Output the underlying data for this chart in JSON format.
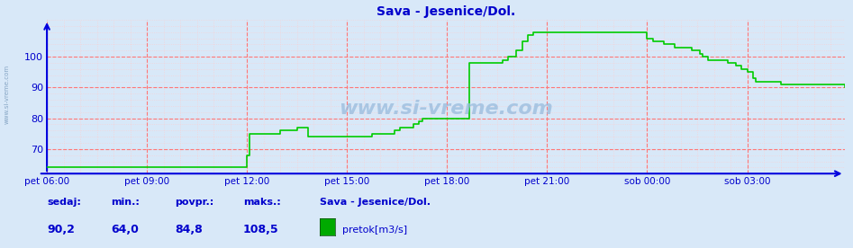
{
  "title": "Sava - Jesenice/Dol.",
  "bg_color": "#d8e8f8",
  "line_color": "#00cc00",
  "axis_color": "#0000dd",
  "grid_color_major": "#ff7777",
  "grid_color_minor": "#ffcccc",
  "text_color": "#0000cc",
  "watermark": "www.si-vreme.com",
  "legend_label": "pretok[m3/s]",
  "legend_color": "#00aa00",
  "station_label": "Sava - Jesenice/Dol.",
  "sedaj": "90,2",
  "min_val": "64,0",
  "povpr": "84,8",
  "maks": "108,5",
  "ylim": [
    62,
    112
  ],
  "yticks": [
    70,
    80,
    90,
    100
  ],
  "x_tick_labels": [
    "pet 06:00",
    "pet 09:00",
    "pet 12:00",
    "pet 15:00",
    "pet 18:00",
    "pet 21:00",
    "sob 00:00",
    "sob 03:00"
  ],
  "x_tick_positions": [
    0,
    36,
    72,
    108,
    144,
    180,
    216,
    252
  ],
  "num_points": 288,
  "flow_data": [
    64,
    64,
    64,
    64,
    64,
    64,
    64,
    64,
    64,
    64,
    64,
    64,
    64,
    64,
    64,
    64,
    64,
    64,
    64,
    64,
    64,
    64,
    64,
    64,
    64,
    64,
    64,
    64,
    64,
    64,
    64,
    64,
    64,
    64,
    64,
    64,
    64,
    64,
    64,
    64,
    64,
    64,
    64,
    64,
    64,
    64,
    64,
    64,
    64,
    64,
    64,
    64,
    64,
    64,
    64,
    64,
    64,
    64,
    64,
    64,
    64,
    64,
    64,
    64,
    64,
    64,
    64,
    64,
    64,
    64,
    64,
    64,
    68,
    75,
    75,
    75,
    75,
    75,
    75,
    75,
    75,
    75,
    75,
    75,
    76,
    76,
    76,
    76,
    76,
    76,
    77,
    77,
    77,
    77,
    74,
    74,
    74,
    74,
    74,
    74,
    74,
    74,
    74,
    74,
    74,
    74,
    74,
    74,
    74,
    74,
    74,
    74,
    74,
    74,
    74,
    74,
    74,
    75,
    75,
    75,
    75,
    75,
    75,
    75,
    75,
    76,
    76,
    77,
    77,
    77,
    77,
    77,
    78,
    78,
    79,
    80,
    80,
    80,
    80,
    80,
    80,
    80,
    80,
    80,
    80,
    80,
    80,
    80,
    80,
    80,
    80,
    80,
    98,
    98,
    98,
    98,
    98,
    98,
    98,
    98,
    98,
    98,
    98,
    98,
    99,
    99,
    100,
    100,
    100,
    102,
    102,
    105,
    105,
    107,
    107,
    108,
    108,
    108,
    108,
    108,
    108,
    108,
    108,
    108,
    108,
    108,
    108,
    108,
    108,
    108,
    108,
    108,
    108,
    108,
    108,
    108,
    108,
    108,
    108,
    108,
    108,
    108,
    108,
    108,
    108,
    108,
    108,
    108,
    108,
    108,
    108,
    108,
    108,
    108,
    108,
    108,
    106,
    106,
    105,
    105,
    105,
    105,
    104,
    104,
    104,
    104,
    103,
    103,
    103,
    103,
    103,
    103,
    102,
    102,
    102,
    101,
    100,
    100,
    99,
    99,
    99,
    99,
    99,
    99,
    99,
    98,
    98,
    98,
    97,
    97,
    96,
    96,
    95,
    95,
    93,
    92,
    92,
    92,
    92,
    92,
    92,
    92,
    92,
    92,
    91,
    91,
    91,
    91,
    91,
    91,
    91,
    91,
    91,
    91,
    91,
    91,
    91,
    91,
    91,
    91,
    91,
    91,
    91,
    91,
    91,
    91,
    91,
    90
  ]
}
